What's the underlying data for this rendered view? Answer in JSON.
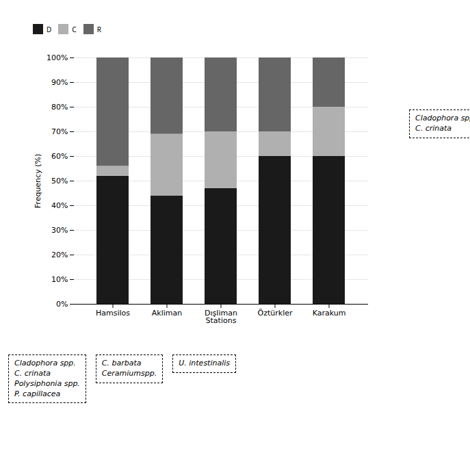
{
  "chart_data": {
    "type": "bar",
    "stacked": true,
    "categories": [
      "Hamsilos",
      "Akliman",
      "Dışliman\nStations",
      "Öztürkler",
      "Karakum"
    ],
    "series": [
      {
        "name": "D",
        "color": "#1a1a1a",
        "values": [
          52,
          44,
          47,
          60,
          60
        ]
      },
      {
        "name": "C",
        "color": "#b0b0b0",
        "values": [
          4,
          25,
          23,
          10,
          20
        ]
      },
      {
        "name": "R",
        "color": "#666666",
        "values": [
          44,
          31,
          30,
          30,
          20
        ]
      }
    ],
    "ylabel": "Frequency (%)",
    "ylim": [
      0,
      100
    ],
    "yticks": [
      {
        "value": 0,
        "label": "0%"
      },
      {
        "value": 10,
        "label": "10%"
      },
      {
        "value": 20,
        "label": "20%"
      },
      {
        "value": 30,
        "label": "30%"
      },
      {
        "value": 40,
        "label": "40%"
      },
      {
        "value": 50,
        "label": "50%"
      },
      {
        "value": 60,
        "label": "60%"
      },
      {
        "value": 70,
        "label": "70%"
      },
      {
        "value": 80,
        "label": "80%"
      },
      {
        "value": 90,
        "label": "90%"
      },
      {
        "value": 100,
        "label": "100%"
      }
    ],
    "grid": true,
    "legend": "top",
    "annotations": [
      "Cladophora spp.\nC. crinata\nPolysiphonia spp.\nP. capillacea",
      "C. barbata\nCeramiumspp.",
      "U. intestinalis",
      "Cladophora spp.\nC. crinata"
    ]
  }
}
